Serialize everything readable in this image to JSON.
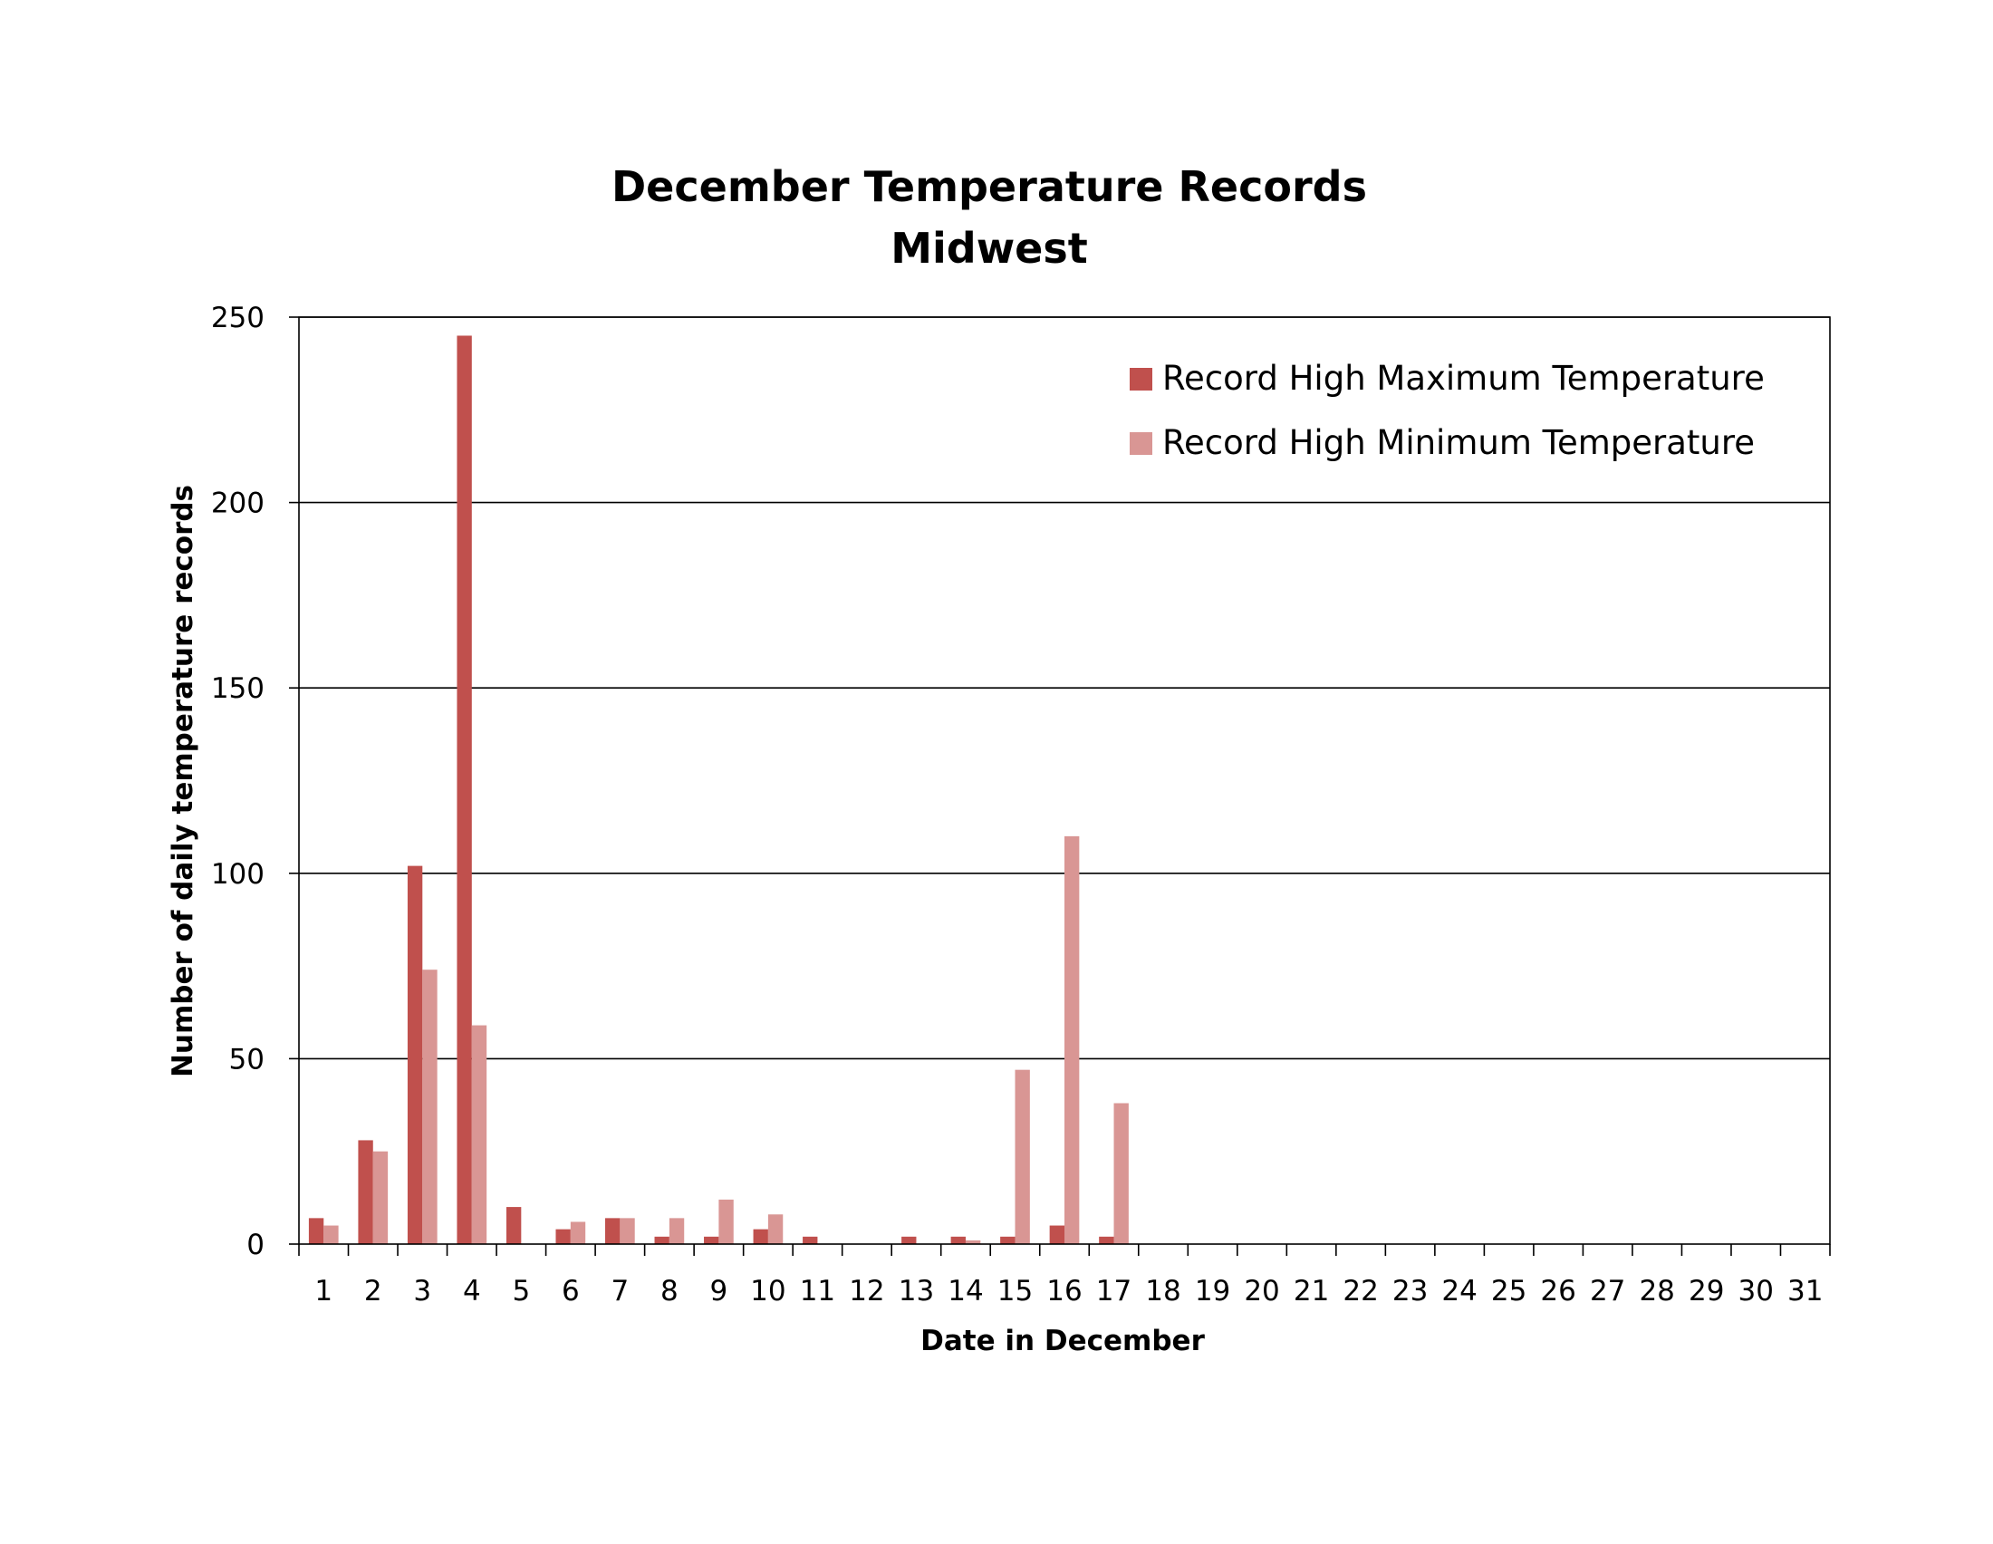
{
  "chart_data": {
    "type": "bar",
    "title": "December Temperature Records",
    "subtitle": "Midwest",
    "xlabel": "Date in December",
    "ylabel": "Number of daily temperature records",
    "ylim": [
      0,
      250
    ],
    "yticks": [
      0,
      50,
      100,
      150,
      200,
      250
    ],
    "grid": true,
    "legend_position": "top-right",
    "categories": [
      "1",
      "2",
      "3",
      "4",
      "5",
      "6",
      "7",
      "8",
      "9",
      "10",
      "11",
      "12",
      "13",
      "14",
      "15",
      "16",
      "17",
      "18",
      "19",
      "20",
      "21",
      "22",
      "23",
      "24",
      "25",
      "26",
      "27",
      "28",
      "29",
      "30",
      "31"
    ],
    "series": [
      {
        "name": "Record High Maximum Temperature",
        "color": "#c0504d",
        "values": [
          7,
          28,
          102,
          245,
          10,
          4,
          7,
          2,
          2,
          4,
          2,
          0,
          2,
          2,
          2,
          5,
          2,
          0,
          0,
          0,
          0,
          0,
          0,
          0,
          0,
          0,
          0,
          0,
          0,
          0,
          0
        ]
      },
      {
        "name": "Record High Minimum Temperature",
        "color": "#d99694",
        "values": [
          5,
          25,
          74,
          59,
          0,
          6,
          7,
          7,
          12,
          8,
          0,
          0,
          0,
          1,
          47,
          110,
          38,
          0,
          0,
          0,
          0,
          0,
          0,
          0,
          0,
          0,
          0,
          0,
          0,
          0,
          0
        ]
      }
    ]
  }
}
